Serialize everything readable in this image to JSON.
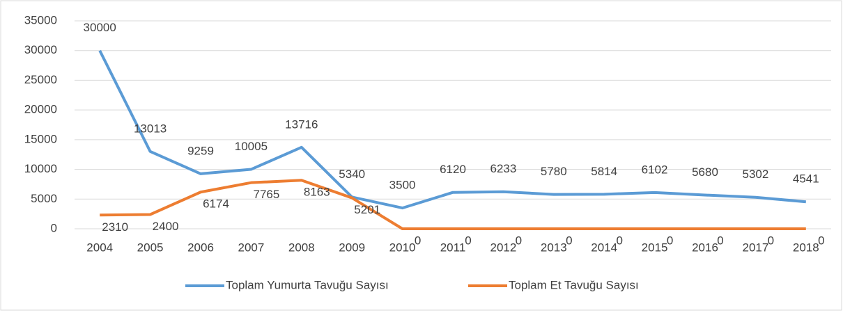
{
  "chart_data": {
    "type": "line",
    "categories": [
      "2004",
      "2005",
      "2006",
      "2007",
      "2008",
      "2009",
      "2010",
      "2011",
      "2012",
      "2013",
      "2014",
      "2015",
      "2016",
      "2017",
      "2018"
    ],
    "series": [
      {
        "name": "Toplam Yumurta Tavuğu Sayısı",
        "color": "#5b9bd5",
        "values": [
          30000,
          13013,
          9259,
          10005,
          13716,
          5340,
          3500,
          6120,
          6233,
          5780,
          5814,
          6102,
          5680,
          5302,
          4541
        ]
      },
      {
        "name": "Toplam Et Tavuğu Sayısı",
        "color": "#ed7d31",
        "values": [
          2310,
          2400,
          6174,
          7765,
          8163,
          5201,
          0,
          0,
          0,
          0,
          0,
          0,
          0,
          0,
          0
        ]
      }
    ],
    "ylim": [
      0,
      35000
    ],
    "yticks": [
      0,
      5000,
      10000,
      15000,
      20000,
      25000,
      30000,
      35000
    ],
    "grid": true,
    "legend": "bottom"
  }
}
